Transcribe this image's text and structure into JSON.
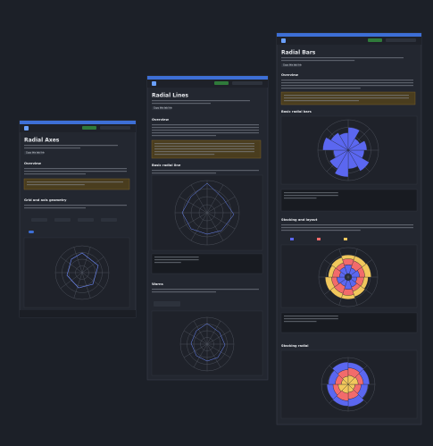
{
  "windows": [
    {
      "title": "Radial Axes",
      "sections": [
        "Overview",
        "Grid and axis geometry"
      ],
      "button": "Copy this tab link"
    },
    {
      "title": "Radial Lines",
      "sections": [
        "Overview",
        "Basic radial line",
        "Warns"
      ],
      "button": "Copy this tab link"
    },
    {
      "title": "Radial Bars",
      "sections": [
        "Overview",
        "Basic radial bars",
        "Stacking and layout",
        "Stacking radial"
      ],
      "button": "Copy this tab link"
    }
  ]
}
